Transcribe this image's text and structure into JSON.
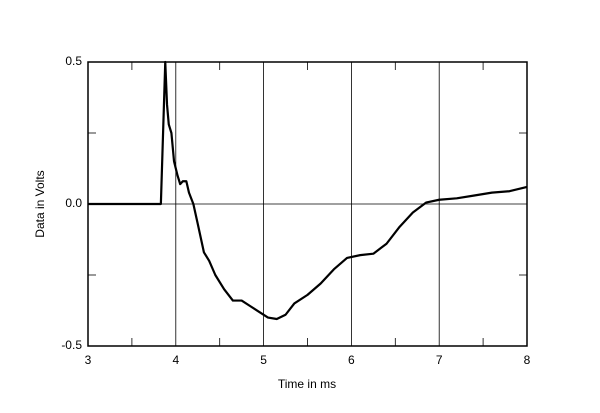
{
  "chart_data": {
    "type": "line",
    "xlabel": "Time in ms",
    "ylabel": "Data in Volts",
    "x": [
      3,
      3.83,
      3.86,
      3.88,
      3.9,
      3.92,
      3.95,
      3.98,
      4.02,
      4.05,
      4.08,
      4.12,
      4.15,
      4.2,
      4.25,
      4.32,
      4.38,
      4.45,
      4.55,
      4.65,
      4.75,
      4.85,
      4.95,
      5.05,
      5.15,
      5.25,
      5.35,
      5.5,
      5.65,
      5.8,
      5.95,
      6.1,
      6.25,
      6.4,
      6.55,
      6.7,
      6.85,
      7.0,
      7.2,
      7.4,
      7.6,
      7.8,
      8.0
    ],
    "values": [
      0,
      0,
      0.3,
      0.5,
      0.35,
      0.28,
      0.25,
      0.15,
      0.1,
      0.07,
      0.08,
      0.08,
      0.04,
      0.0,
      -0.07,
      -0.17,
      -0.2,
      -0.25,
      -0.3,
      -0.34,
      -0.34,
      -0.36,
      -0.38,
      -0.4,
      -0.405,
      -0.39,
      -0.35,
      -0.32,
      -0.28,
      -0.23,
      -0.19,
      -0.18,
      -0.175,
      -0.14,
      -0.08,
      -0.03,
      0.005,
      0.015,
      0.02,
      0.03,
      0.04,
      0.045,
      0.06
    ],
    "color": "#000000",
    "xlim": [
      3,
      8
    ],
    "xticks": [
      3,
      4,
      5,
      6,
      7,
      8
    ],
    "ylim": [
      -0.5,
      0.5
    ],
    "yticks": [
      -0.5,
      {
        "value": 0,
        "label": "0.0"
      },
      0.5
    ],
    "minor_xticks": [
      3.5,
      4.5,
      5.5,
      6.5,
      7.5
    ],
    "minor_yticks": [
      -0.25,
      0.25
    ],
    "grid": true
  }
}
